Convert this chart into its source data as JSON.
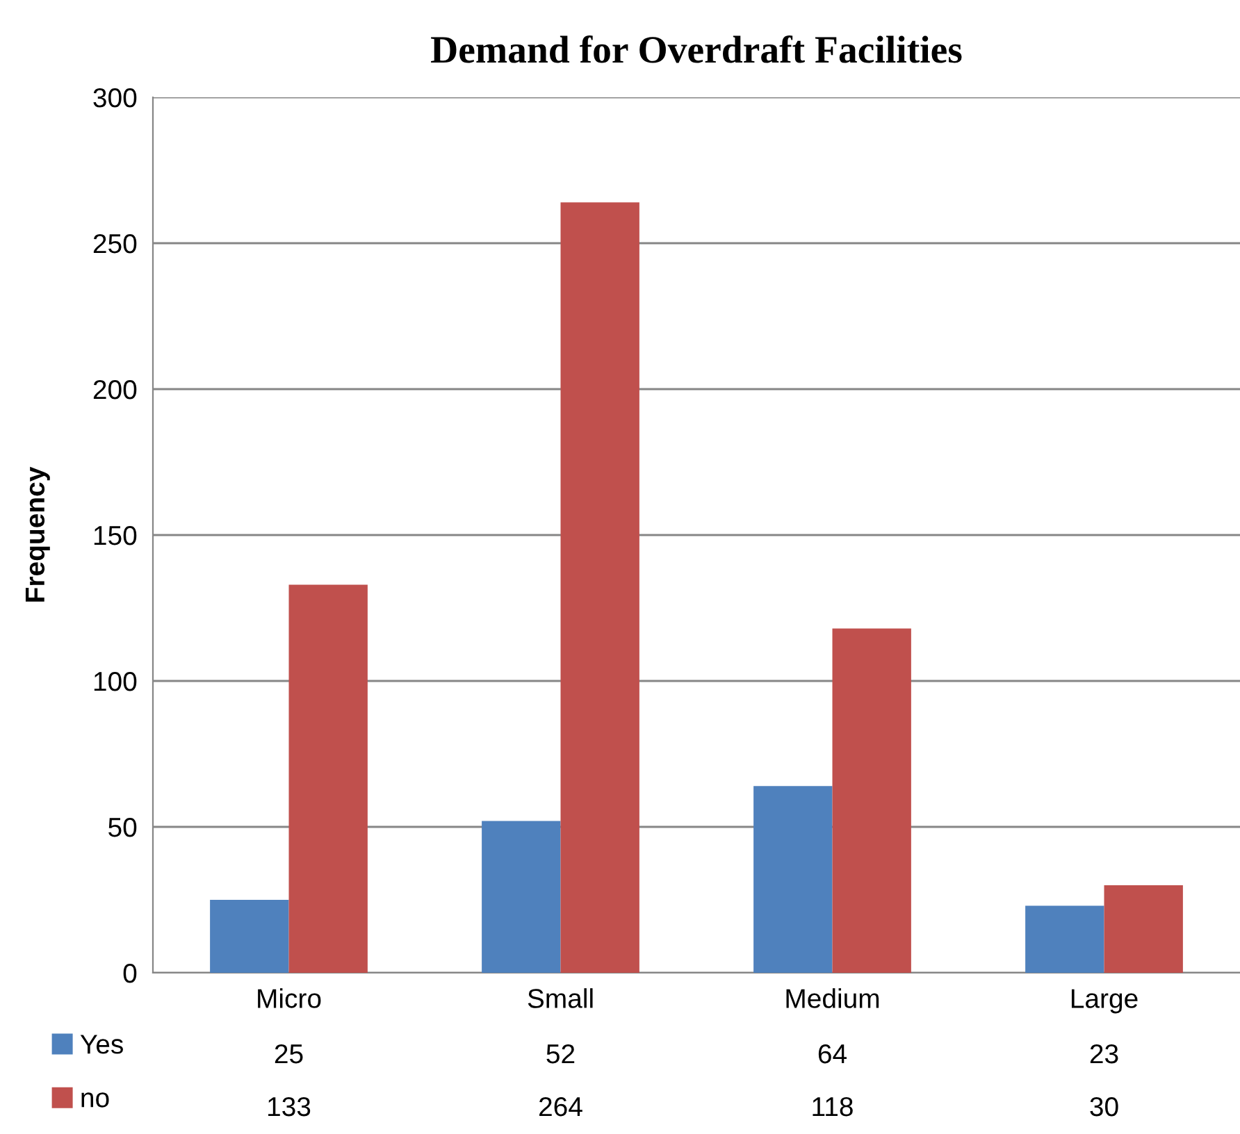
{
  "chart_data": {
    "type": "bar",
    "title": "Demand for Overdraft Facilities",
    "ylabel": "Frequency",
    "categories": [
      "Micro",
      "Small",
      "Medium",
      "Large"
    ],
    "series": [
      {
        "name": "Yes",
        "color": "#4f81bd",
        "values": [
          25,
          52,
          64,
          23
        ]
      },
      {
        "name": "no",
        "color": "#c0504d",
        "values": [
          133,
          264,
          118,
          30
        ]
      }
    ],
    "ylim": [
      0,
      300
    ],
    "yticks": [
      0,
      50,
      100,
      150,
      200,
      250,
      300
    ],
    "grid": "y",
    "legend": "bottom left",
    "data_labels": true
  }
}
